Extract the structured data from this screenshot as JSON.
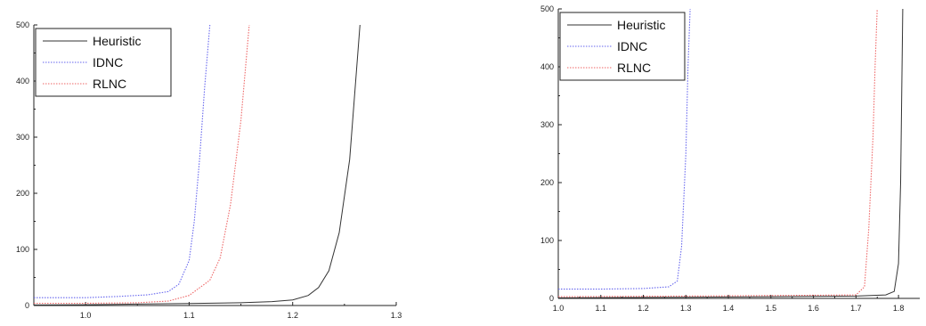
{
  "chart_data": [
    {
      "type": "line",
      "title": "",
      "xlabel": "",
      "ylabel": "",
      "xlim": [
        0.95,
        1.3
      ],
      "ylim": [
        0,
        500
      ],
      "x_ticks": [
        1.0,
        1.1,
        1.2,
        1.3
      ],
      "y_ticks": [
        0,
        100,
        200,
        300,
        400,
        500
      ],
      "x_tick_labels": [
        "1.0",
        "1.1",
        "1.2",
        "1.3"
      ],
      "y_tick_labels": [
        "0",
        "100",
        "200",
        "300",
        "400",
        "500"
      ],
      "grid": false,
      "legend_position": "top-left",
      "series": [
        {
          "name": "Heuristic",
          "color": "#333333",
          "style": "solid",
          "points": [
            [
              0.95,
              1
            ],
            [
              1.0,
              1.5
            ],
            [
              1.05,
              2.5
            ],
            [
              1.1,
              3.5
            ],
            [
              1.15,
              5
            ],
            [
              1.18,
              7
            ],
            [
              1.2,
              10
            ],
            [
              1.215,
              18
            ],
            [
              1.225,
              32
            ],
            [
              1.235,
              62
            ],
            [
              1.245,
              130
            ],
            [
              1.255,
              260
            ],
            [
              1.265,
              500
            ]
          ]
        },
        {
          "name": "IDNC",
          "color": "#6666ee",
          "style": "dotted",
          "points": [
            [
              0.95,
              14
            ],
            [
              1.0,
              14
            ],
            [
              1.03,
              16
            ],
            [
              1.06,
              19
            ],
            [
              1.08,
              25
            ],
            [
              1.09,
              38
            ],
            [
              1.1,
              80
            ],
            [
              1.105,
              150
            ],
            [
              1.11,
              260
            ],
            [
              1.115,
              390
            ],
            [
              1.12,
              500
            ]
          ]
        },
        {
          "name": "RLNC",
          "color": "#ee6666",
          "style": "dotted",
          "points": [
            [
              0.95,
              4
            ],
            [
              1.0,
              4
            ],
            [
              1.05,
              5
            ],
            [
              1.08,
              8
            ],
            [
              1.1,
              18
            ],
            [
              1.12,
              45
            ],
            [
              1.13,
              85
            ],
            [
              1.14,
              180
            ],
            [
              1.15,
              330
            ],
            [
              1.158,
              500
            ]
          ]
        }
      ]
    },
    {
      "type": "line",
      "title": "",
      "xlabel": "",
      "ylabel": "",
      "xlim": [
        1.0,
        1.85
      ],
      "ylim": [
        0,
        500
      ],
      "x_ticks": [
        1.0,
        1.1,
        1.2,
        1.3,
        1.4,
        1.5,
        1.6,
        1.7,
        1.8
      ],
      "y_ticks": [
        0,
        100,
        200,
        300,
        400,
        500
      ],
      "x_tick_labels": [
        "1.0",
        "1.1",
        "1.2",
        "1.3",
        "1.4",
        "1.5",
        "1.6",
        "1.7",
        "1.8"
      ],
      "y_tick_labels": [
        "0",
        "100",
        "200",
        "300",
        "400",
        "500"
      ],
      "grid": false,
      "legend_position": "top-left",
      "series": [
        {
          "name": "Heuristic",
          "color": "#333333",
          "style": "solid",
          "points": [
            [
              1.0,
              1
            ],
            [
              1.3,
              2
            ],
            [
              1.5,
              3
            ],
            [
              1.7,
              4
            ],
            [
              1.77,
              6
            ],
            [
              1.79,
              12
            ],
            [
              1.8,
              60
            ],
            [
              1.805,
              200
            ],
            [
              1.81,
              500
            ]
          ]
        },
        {
          "name": "IDNC",
          "color": "#6666ee",
          "style": "dotted",
          "points": [
            [
              1.0,
              16
            ],
            [
              1.1,
              16
            ],
            [
              1.2,
              17
            ],
            [
              1.26,
              20
            ],
            [
              1.28,
              30
            ],
            [
              1.29,
              90
            ],
            [
              1.3,
              250
            ],
            [
              1.305,
              400
            ],
            [
              1.31,
              500
            ]
          ]
        },
        {
          "name": "RLNC",
          "color": "#ee6666",
          "style": "dotted",
          "points": [
            [
              1.0,
              3
            ],
            [
              1.3,
              4
            ],
            [
              1.5,
              5
            ],
            [
              1.7,
              6
            ],
            [
              1.72,
              20
            ],
            [
              1.73,
              120
            ],
            [
              1.74,
              280
            ],
            [
              1.745,
              400
            ],
            [
              1.75,
              500
            ]
          ]
        }
      ]
    }
  ]
}
